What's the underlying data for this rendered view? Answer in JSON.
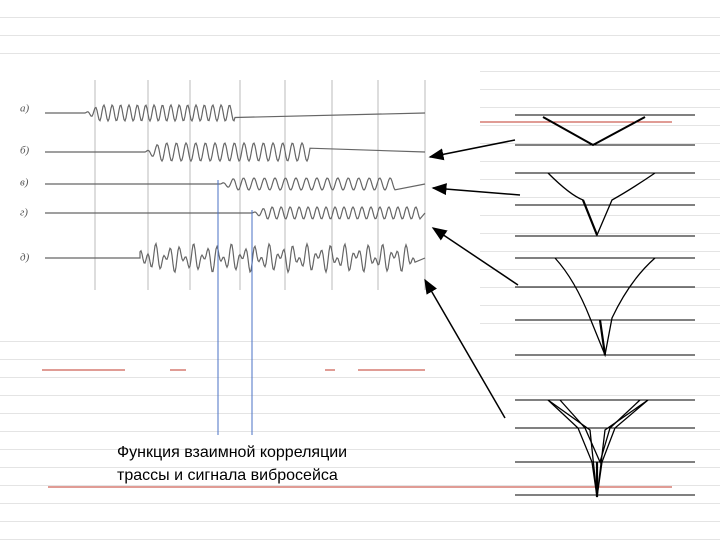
{
  "traces": [
    {
      "label": "а)"
    },
    {
      "label": "б)"
    },
    {
      "label": "в)"
    },
    {
      "label": "г)"
    },
    {
      "label": "д)"
    }
  ],
  "caption": {
    "lines": [
      "Функция взаимной корреляции",
      "трассы и сигнала вибросейса"
    ]
  }
}
